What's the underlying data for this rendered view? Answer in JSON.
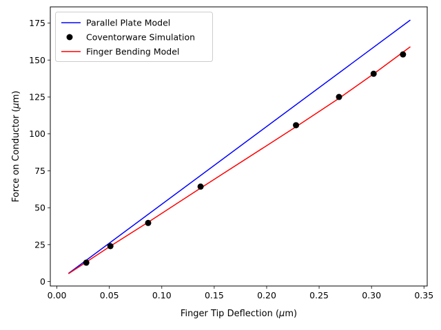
{
  "chart_data": {
    "type": "line",
    "xlabel_text": "Finger Tip Deflection (",
    "xlabel_mu": "μ",
    "xlabel_unit": "m)",
    "ylabel_text": "Force on Conductor (",
    "ylabel_mu": "μ",
    "ylabel_unit": "m)",
    "xlim": [
      -0.0063,
      0.3531
    ],
    "ylim": [
      -3.0,
      186.0
    ],
    "xticks": [
      0.0,
      0.05,
      0.1,
      0.15,
      0.2,
      0.25,
      0.3,
      0.35
    ],
    "xtick_labels": [
      "0.00",
      "0.05",
      "0.10",
      "0.15",
      "0.20",
      "0.25",
      "0.30",
      "0.35"
    ],
    "yticks": [
      0,
      25,
      50,
      75,
      100,
      125,
      150,
      175
    ],
    "ytick_labels": [
      "0",
      "25",
      "50",
      "75",
      "100",
      "125",
      "150",
      "175"
    ],
    "legend_position": "top-left",
    "grid": false,
    "series": [
      {
        "name": "Parallel Plate Model",
        "kind": "line",
        "color": "#0000ff",
        "x": [
          0.011,
          0.337
        ],
        "y": [
          5.5,
          177.1
        ]
      },
      {
        "name": "Coventorware Simulation",
        "kind": "scatter",
        "color": "#000000",
        "x": [
          0.028,
          0.051,
          0.087,
          0.137,
          0.228,
          0.269,
          0.302,
          0.33
        ],
        "y": [
          12.8,
          24.0,
          39.7,
          64.3,
          105.9,
          125.0,
          140.7,
          153.8
        ]
      },
      {
        "name": "Finger Bending Model",
        "kind": "line",
        "color": "#ff0000",
        "x": [
          0.011,
          0.028,
          0.051,
          0.087,
          0.137,
          0.228,
          0.269,
          0.302,
          0.337
        ],
        "y": [
          5.3,
          13.2,
          24.0,
          40.2,
          63.3,
          104.8,
          124.1,
          140.6,
          159.0
        ]
      }
    ]
  }
}
